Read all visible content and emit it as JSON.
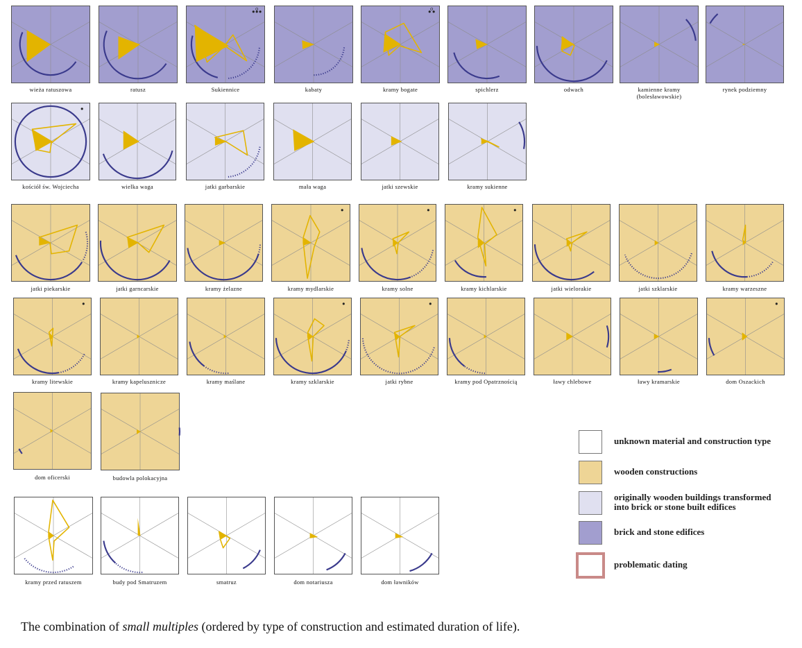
{
  "colors": {
    "brick": "#a29ecf",
    "transformed": "#e0e0f0",
    "wooden": "#eed596",
    "unknown": "#ffffff",
    "problematic": "#c98a88",
    "glyph": "#e3b400",
    "arc": "#3a3a8c"
  },
  "panels": [
    {
      "label": "wieża ratuszowa",
      "type": "brick"
    },
    {
      "label": "ratusz",
      "type": "brick"
    },
    {
      "label": "Sukiennice",
      "type": "brick"
    },
    {
      "label": "kabaty",
      "type": "brick"
    },
    {
      "label": "kramy bogate",
      "type": "brick"
    },
    {
      "label": "spichlerz",
      "type": "brick"
    },
    {
      "label": "odwach",
      "type": "brick"
    },
    {
      "label": "kamienne kramy",
      "label2": "(bolesławowskie)",
      "type": "brick"
    },
    {
      "label": "rynek podziemny",
      "type": "brick"
    },
    {
      "label": "kościół św. Wojciecha",
      "type": "transformed"
    },
    {
      "label": "wielka waga",
      "type": "transformed"
    },
    {
      "label": "jatki garbarskie",
      "type": "transformed"
    },
    {
      "label": "mała waga",
      "type": "transformed"
    },
    {
      "label": "jatki szewskie",
      "type": "transformed"
    },
    {
      "label": "kramy sukienne",
      "type": "transformed"
    },
    {
      "label": "jatki piekarskie",
      "type": "wooden"
    },
    {
      "label": "jatki garncarskie",
      "type": "wooden"
    },
    {
      "label": "kramy żelazne",
      "type": "wooden"
    },
    {
      "label": "kramy mydlarskie",
      "type": "wooden"
    },
    {
      "label": "kramy solne",
      "type": "wooden"
    },
    {
      "label": "kramy kichlarskie",
      "type": "wooden"
    },
    {
      "label": "jatki wielorakie",
      "type": "wooden"
    },
    {
      "label": "jatki szklarskie",
      "type": "wooden"
    },
    {
      "label": "kramy warzeszne",
      "type": "wooden"
    },
    {
      "label": "kramy litewskie",
      "type": "wooden"
    },
    {
      "label": "kramy kapelusznicze",
      "type": "wooden"
    },
    {
      "label": "kramy maślane",
      "type": "wooden"
    },
    {
      "label": "kramy szklarskie",
      "type": "wooden"
    },
    {
      "label": "jatki rybne",
      "type": "wooden"
    },
    {
      "label": "kramy pod Opatrznością",
      "type": "wooden"
    },
    {
      "label": "ławy chlebowe",
      "type": "wooden"
    },
    {
      "label": "ławy kramarskie",
      "type": "wooden"
    },
    {
      "label": "dom Oszackich",
      "type": "wooden"
    },
    {
      "label": "dom oficerski",
      "type": "wooden"
    },
    {
      "label": "budowla polokacyjna",
      "type": "wooden"
    },
    {
      "label": "kramy przed ratuszem",
      "type": "unknown"
    },
    {
      "label": "budy pod Smatruzem",
      "type": "unknown"
    },
    {
      "label": "smatruz",
      "type": "unknown"
    },
    {
      "label": "dom notariusza",
      "type": "unknown"
    },
    {
      "label": "dom ławników",
      "type": "unknown"
    }
  ],
  "legend": [
    {
      "text": "unknown material and construction type",
      "type": "unknown"
    },
    {
      "text": "wooden constructions",
      "type": "wooden"
    },
    {
      "text": "originally wooden buildings transformed",
      "text2": "into brick or stone built edifices",
      "type": "transformed"
    },
    {
      "text": "brick and stone edifices",
      "type": "brick"
    },
    {
      "text": "problematic dating",
      "type": "problematic"
    }
  ],
  "caption": {
    "before": "The combination of ",
    "italic": "small multiples",
    "after": " (ordered by type of construction and estimated duration of life)."
  }
}
